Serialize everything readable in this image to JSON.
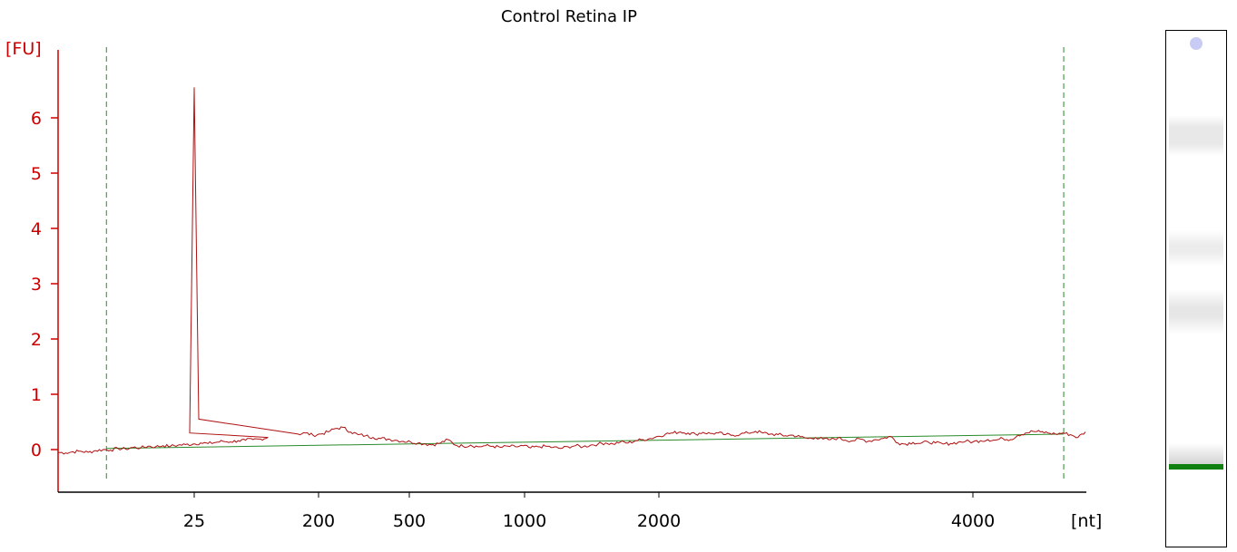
{
  "chart_data": {
    "type": "line",
    "title": "Control Retina IP",
    "ylabel": "[FU]",
    "xlabel": "[nt]",
    "ylim": [
      -0.7,
      7.2
    ],
    "y_ticks": [
      0,
      1,
      2,
      3,
      4,
      5,
      6
    ],
    "y_tick_labels": [
      "0",
      "1",
      "2",
      "3",
      "4",
      "5",
      "6"
    ],
    "x_tick_labels": [
      "25",
      "200",
      "500",
      "1000",
      "2000",
      "4000"
    ],
    "grid": false,
    "series": [
      {
        "values_fu": [
          -0.05,
          -0.06,
          -0.04,
          -0.03,
          -0.05,
          -0.02,
          0.0,
          -0.01,
          0.02,
          0.01,
          0.04,
          0.03,
          0.06,
          0.05,
          0.07,
          0.06,
          0.08,
          0.09,
          0.1,
          0.12,
          0.11,
          0.13,
          0.15,
          0.14,
          0.16,
          0.17,
          0.18,
          0.19,
          0.22,
          0.3,
          6.55,
          0.55,
          0.28,
          0.3,
          0.26,
          0.28,
          0.32,
          0.38,
          0.4,
          0.32,
          0.27,
          0.25,
          0.22,
          0.2,
          0.19,
          0.17,
          0.15,
          0.14,
          0.12,
          0.1,
          0.09,
          0.12,
          0.18,
          0.08,
          0.06,
          0.08,
          0.05,
          0.07,
          0.06,
          0.04,
          0.06,
          0.05,
          0.07,
          0.03,
          0.05,
          0.06,
          0.04,
          0.02,
          0.05,
          0.07,
          0.05,
          0.08,
          0.1,
          0.12,
          0.1,
          0.14,
          0.12,
          0.16,
          0.18,
          0.2,
          0.24,
          0.28,
          0.3,
          0.32,
          0.3,
          0.28,
          0.31,
          0.29,
          0.3,
          0.27,
          0.26,
          0.28,
          0.3,
          0.33,
          0.3,
          0.28,
          0.27,
          0.25,
          0.26,
          0.23,
          0.2,
          0.22,
          0.19,
          0.18,
          0.21,
          0.17,
          0.16,
          0.19,
          0.15,
          0.18,
          0.2,
          0.24,
          0.12,
          0.1,
          0.13,
          0.11,
          0.14,
          0.12,
          0.1,
          0.11,
          0.13,
          0.15,
          0.14,
          0.16,
          0.18,
          0.17,
          0.2,
          0.18,
          0.26,
          0.3,
          0.33,
          0.32,
          0.3,
          0.28,
          0.3,
          0.27,
          0.22,
          0.32
        ]
      },
      {
        "baseline_fu": [
          0.02,
          0.28
        ]
      }
    ],
    "markers": {
      "lower_marker_pos": 0.047,
      "upper_marker_pos": 0.978
    }
  },
  "gel": {
    "lane_label": "",
    "colors": {
      "ladder_band": "#108010",
      "marker_spot": "#c8ccf5"
    }
  },
  "colors": {
    "axis": "#cc0000",
    "trace": "#b01010",
    "baseline": "#2a8a2a",
    "marker_line": "#2a8a2a"
  }
}
